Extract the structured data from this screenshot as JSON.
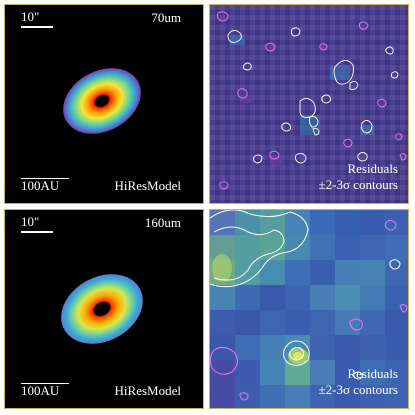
{
  "panels": {
    "top_left": {
      "scale_angular": "10\"",
      "wavelength": "70um",
      "scale_physical": "100AU",
      "model_label": "HiResModel"
    },
    "top_right": {
      "residual_label": "Residuals",
      "contour_label": "±2-3σ contours"
    },
    "bottom_left": {
      "scale_angular": "10\"",
      "wavelength": "160um",
      "scale_physical": "100AU",
      "model_label": "HiResModel"
    },
    "bottom_right": {
      "residual_label": "Residuals",
      "contour_label": "±2-3σ contours"
    }
  },
  "colors": {
    "model_background": "#000000",
    "residual_70um_background": "#4a3f8e",
    "residual_160um_background": "#3f5fb0",
    "positive_contour": "#ffffff",
    "negative_contour": "#e879f9",
    "frame": "#c8b060"
  }
}
